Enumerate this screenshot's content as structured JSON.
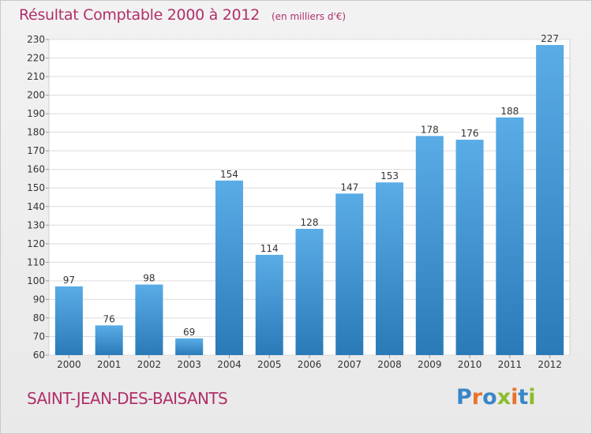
{
  "header": {
    "title": "Résultat Comptable 2000 à 2012",
    "subtitle": "(en milliers d'€)"
  },
  "footer": {
    "commune": "SAINT-JEAN-DES-BAISANTS",
    "logo_text": "Proxiti"
  },
  "colors": {
    "accent": "#b0306a",
    "bar_top": "#5aace6",
    "bar_bottom": "#2a7ab8",
    "logo": [
      "#3a86c8",
      "#e8732a",
      "#3a86c8",
      "#8bbd2c",
      "#e8732a",
      "#3a86c8",
      "#8bbd2c"
    ]
  },
  "chart_data": {
    "type": "bar",
    "categories": [
      "2000",
      "2001",
      "2002",
      "2003",
      "2004",
      "2005",
      "2006",
      "2007",
      "2008",
      "2009",
      "2010",
      "2011",
      "2012"
    ],
    "values": [
      97,
      76,
      98,
      69,
      154,
      114,
      128,
      147,
      153,
      178,
      176,
      188,
      227
    ],
    "ylim": [
      60,
      230
    ],
    "yticks": [
      60,
      70,
      80,
      90,
      100,
      110,
      120,
      130,
      140,
      150,
      160,
      170,
      180,
      190,
      200,
      210,
      220,
      230
    ],
    "grid": true,
    "legend": "none"
  }
}
